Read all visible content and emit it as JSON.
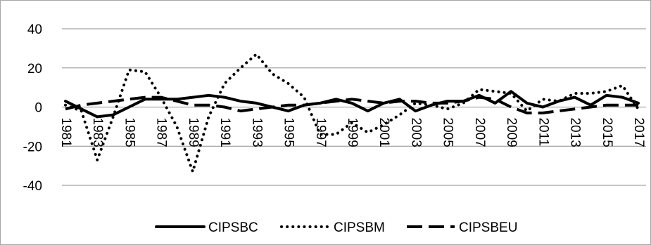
{
  "chart_data": {
    "type": "line",
    "x": [
      1981,
      1982,
      1983,
      1984,
      1985,
      1986,
      1987,
      1988,
      1989,
      1990,
      1991,
      1992,
      1993,
      1994,
      1995,
      1996,
      1997,
      1998,
      1999,
      2000,
      2001,
      2002,
      2003,
      2004,
      2005,
      2006,
      2007,
      2008,
      2009,
      2010,
      2011,
      2012,
      2013,
      2014,
      2015,
      2016,
      2017
    ],
    "x_tick_labels": [
      "1981",
      "1983",
      "1985",
      "1987",
      "1989",
      "1991",
      "1993",
      "1995",
      "1997",
      "1999",
      "2001",
      "2003",
      "2005",
      "2007",
      "2009",
      "2011",
      "2013",
      "2015",
      "2017"
    ],
    "y_tick_labels": [
      "40",
      "20",
      "0",
      "-20",
      "-40"
    ],
    "ylim": [
      -40,
      40
    ],
    "y_ticks": [
      40,
      20,
      0,
      -20,
      -40
    ],
    "grid": true,
    "legend_position": "bottom",
    "series": [
      {
        "name": "CIPSBC",
        "style": "solid",
        "color": "#000000",
        "values": [
          3,
          -1,
          -5,
          -4,
          0,
          4,
          4,
          4,
          5,
          6,
          5,
          3,
          2,
          0,
          -2,
          1,
          2,
          4,
          2,
          -2,
          2,
          4,
          -2,
          1,
          3,
          3,
          6,
          2,
          8,
          2,
          0,
          3,
          5,
          1,
          6,
          5,
          2
        ]
      },
      {
        "name": "CIPSBM",
        "style": "dotted",
        "color": "#000000",
        "values": [
          1,
          -2,
          -27,
          -5,
          19,
          18,
          5,
          -10,
          -33,
          -5,
          12,
          20,
          27,
          17,
          12,
          5,
          -14,
          -14,
          -8,
          -13,
          -9,
          -4,
          2,
          1,
          -1,
          2,
          9,
          8,
          7,
          -2,
          4,
          3,
          7,
          7,
          8,
          11,
          -1
        ]
      },
      {
        "name": "CIPSBEU",
        "style": "dashed",
        "color": "#000000",
        "values": [
          -1,
          1,
          2,
          3,
          4,
          5,
          5,
          3,
          1,
          1,
          0,
          -2,
          -1,
          0,
          1,
          1,
          2,
          3,
          4,
          3,
          2,
          3,
          3,
          2,
          2,
          3,
          5,
          4,
          0,
          -3,
          -3,
          -2,
          -1,
          0,
          1,
          1,
          1
        ]
      }
    ]
  }
}
